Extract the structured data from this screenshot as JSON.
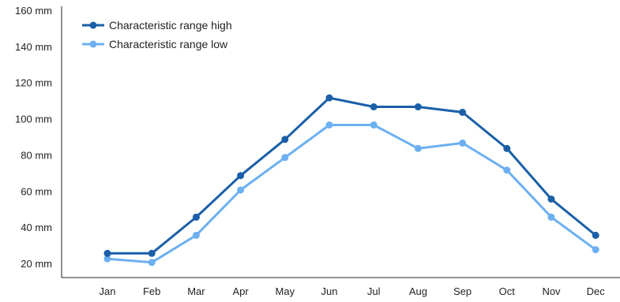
{
  "chart_data": {
    "type": "line",
    "title": "",
    "xlabel": "",
    "ylabel": "",
    "categories": [
      "Jan",
      "Feb",
      "Mar",
      "Apr",
      "May",
      "Jun",
      "Jul",
      "Aug",
      "Sep",
      "Oct",
      "Nov",
      "Dec"
    ],
    "series": [
      {
        "name": "Characteristic range high",
        "color": "#1a5fa8",
        "values": [
          26,
          26,
          46,
          69,
          89,
          112,
          107,
          107,
          104,
          84,
          56,
          36
        ]
      },
      {
        "name": "Characteristic range low",
        "color": "#6cb0f2",
        "values": [
          23,
          21,
          36,
          61,
          79,
          97,
          97,
          84,
          87,
          72,
          46,
          28
        ]
      }
    ],
    "ylim": [
      10,
      160
    ],
    "yticks": [
      20,
      40,
      60,
      80,
      100,
      120,
      140,
      160
    ],
    "ytick_labels": [
      "20 mm",
      "40 mm",
      "60 mm",
      "80 mm",
      "100 mm",
      "120 mm",
      "140 mm",
      "160 mm"
    ],
    "grid": false,
    "legend": "top-left"
  }
}
